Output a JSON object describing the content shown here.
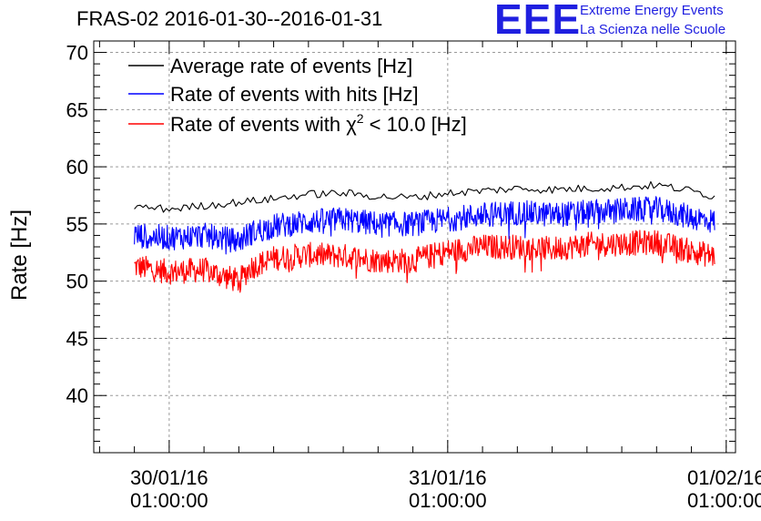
{
  "header": {
    "title": "FRAS-02 2016-01-30--2016-01-31"
  },
  "logo": {
    "mark": "EEE",
    "line1": "Extreme Energy Events",
    "line2": "La Scienza nelle Scuole",
    "color": "#1f1fe0"
  },
  "chart_data": {
    "type": "line",
    "title": "FRAS-02 2016-01-30--2016-01-31",
    "ylabel": "Rate [Hz]",
    "xlabel": "",
    "ylim": [
      35,
      71
    ],
    "xlim_hours": [
      -6.5,
      48.8
    ],
    "grid": true,
    "legend_position": "top-left",
    "x_ticks": [
      {
        "hours": 0,
        "line1": "30/01/16",
        "line2": "01:00:00"
      },
      {
        "hours": 24,
        "line1": "31/01/16",
        "line2": "01:00:00"
      },
      {
        "hours": 48,
        "line1": "01/02/16",
        "line2": "01:00:00"
      }
    ],
    "y_ticks": [
      40,
      45,
      50,
      55,
      60,
      65,
      70
    ],
    "series": [
      {
        "name": "Average rate of events [Hz]",
        "legend_label": "Average rate of events [Hz]",
        "color": "#000000",
        "x_hours": [
          -3,
          0,
          3,
          6,
          9,
          12,
          15,
          18,
          21,
          24,
          27,
          30,
          33,
          36,
          39,
          42,
          45,
          47
        ],
        "values": [
          56.5,
          56.3,
          56.6,
          56.9,
          57.2,
          57.6,
          57.7,
          57.4,
          57.3,
          57.7,
          57.9,
          58.1,
          58.0,
          58.1,
          58.2,
          58.4,
          57.9,
          57.4
        ],
        "noise": 0.35
      },
      {
        "name": "Rate of events with hits [Hz]",
        "legend_label": "Rate of events with hits [Hz]",
        "color": "#0000ff",
        "x_hours": [
          -3,
          0,
          3,
          6,
          7,
          9,
          12,
          15,
          18,
          21,
          24,
          27,
          30,
          33,
          36,
          39,
          42,
          45,
          47
        ],
        "values": [
          54.0,
          53.8,
          54.0,
          53.5,
          54.2,
          54.8,
          55.2,
          55.4,
          55.0,
          55.0,
          55.4,
          55.8,
          56.0,
          55.8,
          56.0,
          56.2,
          56.3,
          55.6,
          55.2
        ],
        "noise": 1.1
      },
      {
        "name": "Rate of events with chi2 < 10.0 [Hz]",
        "legend_label": "Rate of events with χ² < 10.0 [Hz]",
        "legend_text_main": "Rate of events with χ",
        "legend_text_sup": "2",
        "legend_text_tail": " < 10.0 [Hz]",
        "color": "#ff0000",
        "x_hours": [
          -3,
          0,
          3,
          6,
          7,
          9,
          12,
          15,
          18,
          21,
          24,
          27,
          30,
          33,
          36,
          39,
          42,
          45,
          47
        ],
        "values": [
          51.3,
          50.8,
          51.0,
          50.0,
          51.2,
          52.0,
          52.3,
          52.2,
          51.8,
          51.8,
          52.6,
          53.0,
          53.0,
          52.8,
          53.2,
          53.3,
          53.4,
          52.6,
          52.2
        ],
        "noise": 1.1
      }
    ]
  }
}
